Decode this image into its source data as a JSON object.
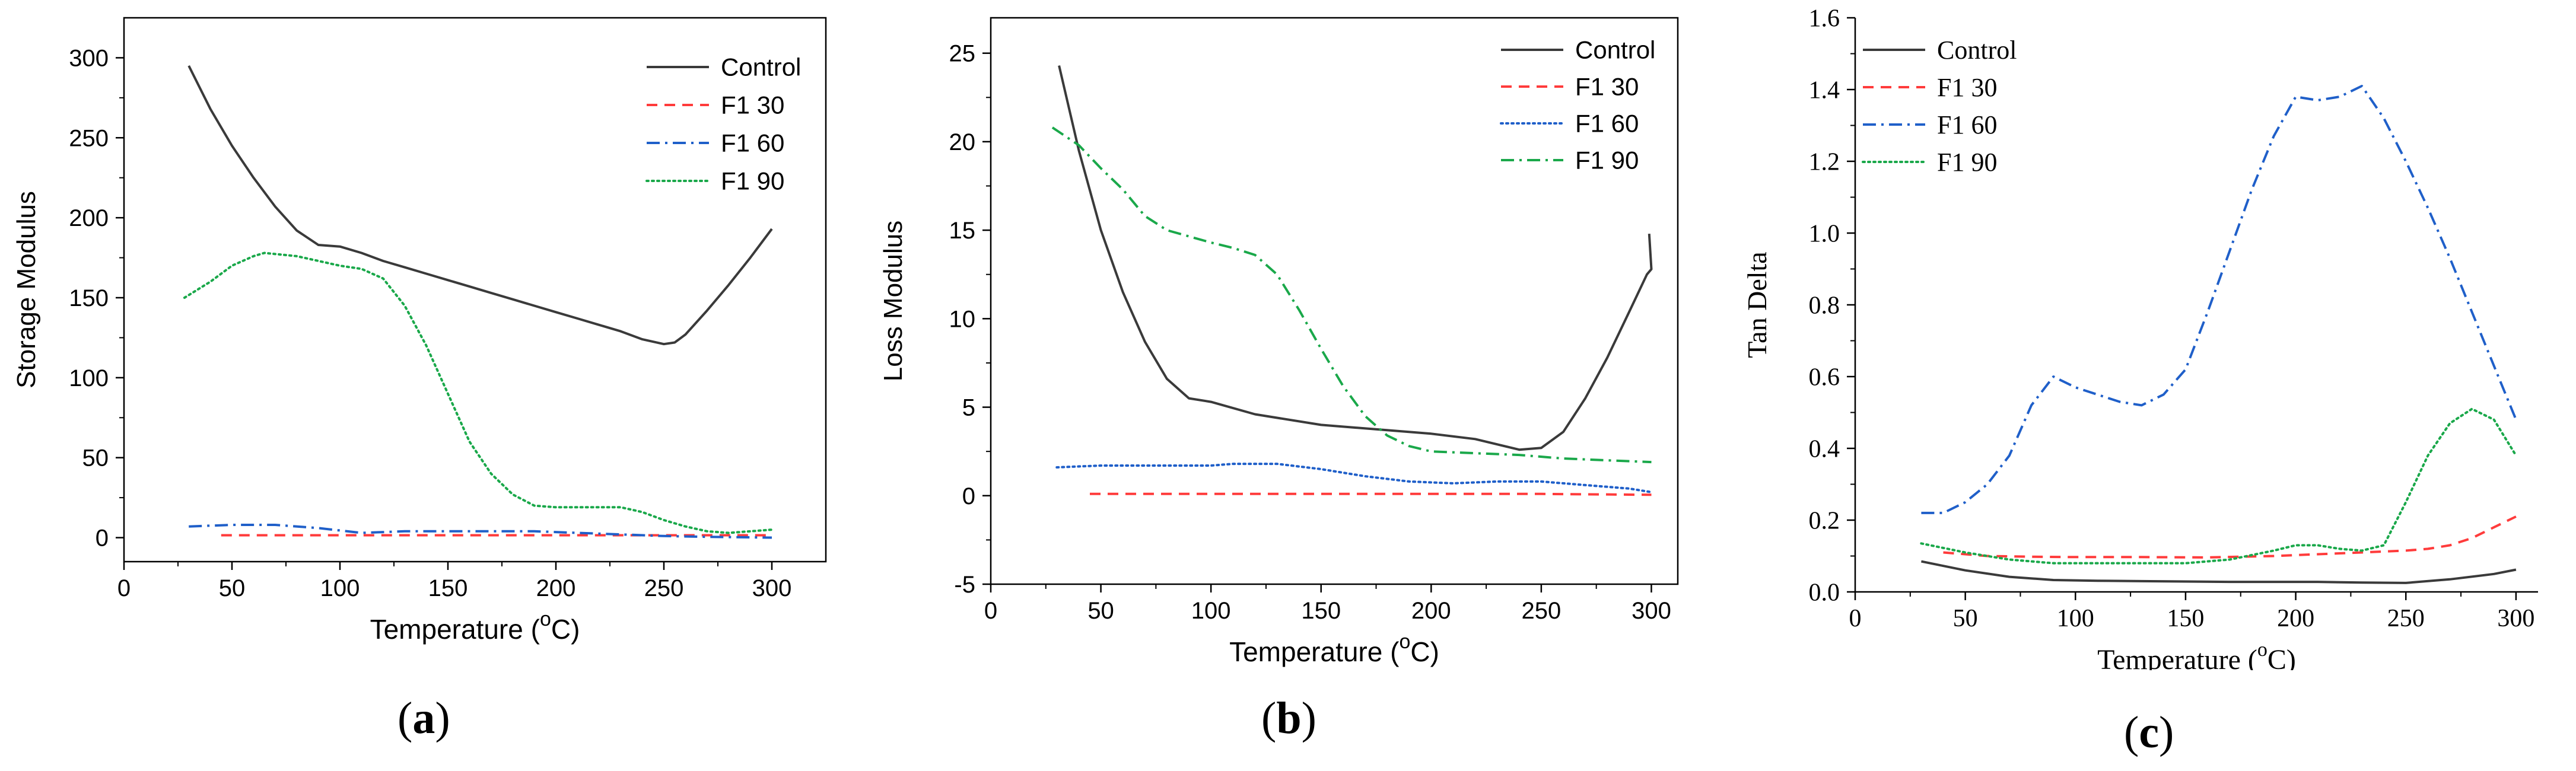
{
  "panels": [
    {
      "id": "a",
      "caption": "a",
      "chart_data": {
        "type": "line",
        "xlabel": "Temperature (oC)",
        "ylabel": "Storage Modulus",
        "xlim": [
          0,
          325
        ],
        "ylim": [
          -15,
          325
        ],
        "xticks": [
          0,
          50,
          100,
          150,
          200,
          250,
          300
        ],
        "yticks": [
          0,
          50,
          100,
          150,
          200,
          250,
          300
        ],
        "legend_position": "top-right",
        "font": "sans",
        "series": [
          {
            "name": "Control",
            "color": "#3a3a3a",
            "dash": "solid",
            "x": [
              30,
              40,
              50,
              60,
              70,
              80,
              90,
              100,
              110,
              120,
              130,
              140,
              150,
              160,
              170,
              180,
              190,
              200,
              210,
              220,
              230,
              240,
              250,
              255,
              260,
              270,
              280,
              290,
              300
            ],
            "y": [
              295,
              268,
              245,
              225,
              207,
              192,
              183,
              182,
              178,
              173,
              169,
              165,
              161,
              157,
              153,
              149,
              145,
              141,
              137,
              133,
              129,
              124,
              121,
              122,
              127,
              142,
              158,
              175,
              193
            ]
          },
          {
            "name": "F1 30",
            "color": "#ff3b3b",
            "dash": "dashed",
            "x": [
              45,
              100,
              150,
              200,
              250,
              300
            ],
            "y": [
              1.5,
              1.5,
              1.5,
              1.5,
              1.5,
              1.5
            ]
          },
          {
            "name": "F1 60",
            "color": "#1f5fc9",
            "dash": "dashdot",
            "x": [
              30,
              50,
              70,
              90,
              110,
              130,
              150,
              170,
              190,
              210,
              230,
              250,
              270,
              300
            ],
            "y": [
              7,
              8,
              8,
              6,
              3,
              4,
              4,
              4,
              4,
              3,
              2,
              1,
              0.5,
              0
            ]
          },
          {
            "name": "F1 90",
            "color": "#1aa84a",
            "dash": "dotted",
            "x": [
              28,
              40,
              50,
              60,
              65,
              80,
              100,
              110,
              120,
              130,
              140,
              150,
              160,
              170,
              180,
              190,
              200,
              220,
              230,
              240,
              250,
              260,
              270,
              280,
              290,
              300
            ],
            "y": [
              150,
              160,
              170,
              176,
              178,
              176,
              170,
              168,
              162,
              145,
              120,
              90,
              60,
              40,
              27,
              20,
              19,
              19,
              19,
              16,
              11,
              7,
              4,
              3,
              4,
              5
            ]
          }
        ]
      }
    },
    {
      "id": "b",
      "caption": "b",
      "chart_data": {
        "type": "line",
        "xlabel": "Temperature (oC)",
        "ylabel": "Loss Modulus",
        "xlim": [
          0,
          312
        ],
        "ylim": [
          -5,
          27
        ],
        "xticks": [
          0,
          50,
          100,
          150,
          200,
          250,
          300
        ],
        "yticks": [
          -5,
          0,
          5,
          10,
          15,
          20,
          25
        ],
        "legend_position": "top-right",
        "font": "sans",
        "series": [
          {
            "name": "Control",
            "color": "#3a3a3a",
            "dash": "solid",
            "x": [
              31,
              40,
              50,
              60,
              70,
              80,
              90,
              100,
              120,
              150,
              200,
              220,
              240,
              250,
              260,
              270,
              280,
              290,
              298,
              300,
              299
            ],
            "y": [
              24.3,
              19.5,
              15.0,
              11.5,
              8.7,
              6.6,
              5.5,
              5.3,
              4.6,
              4.0,
              3.5,
              3.2,
              2.6,
              2.7,
              3.6,
              5.5,
              7.8,
              10.4,
              12.5,
              12.8,
              14.8
            ]
          },
          {
            "name": "F1 30",
            "color": "#ff3b3b",
            "dash": "dashed",
            "x": [
              45,
              100,
              150,
              200,
              250,
              300
            ],
            "y": [
              0.1,
              0.1,
              0.1,
              0.1,
              0.1,
              0.05
            ]
          },
          {
            "name": "F1 60",
            "color": "#1f5fc9",
            "dash": "dotted",
            "x": [
              30,
              50,
              70,
              90,
              100,
              110,
              120,
              130,
              150,
              170,
              190,
              210,
              230,
              250,
              270,
              290,
              300
            ],
            "y": [
              1.6,
              1.7,
              1.7,
              1.7,
              1.7,
              1.8,
              1.8,
              1.8,
              1.5,
              1.1,
              0.8,
              0.7,
              0.8,
              0.8,
              0.6,
              0.4,
              0.2
            ]
          },
          {
            "name": "F1 90",
            "color": "#1aa84a",
            "dash": "dashdot",
            "x": [
              28,
              40,
              50,
              60,
              70,
              80,
              100,
              110,
              120,
              130,
              140,
              150,
              160,
              170,
              180,
              190,
              200,
              220,
              240,
              260,
              280,
              300
            ],
            "y": [
              20.8,
              19.8,
              18.5,
              17.3,
              15.8,
              15.0,
              14.3,
              14.0,
              13.6,
              12.5,
              10.5,
              8.3,
              6.2,
              4.5,
              3.4,
              2.8,
              2.5,
              2.4,
              2.3,
              2.1,
              2.0,
              1.9
            ]
          }
        ]
      }
    },
    {
      "id": "c",
      "caption": "c",
      "chart_data": {
        "type": "line",
        "xlabel": "Temperature (oC)",
        "ylabel": "Tan Delta",
        "xlim": [
          0,
          310
        ],
        "ylim": [
          0,
          1.6
        ],
        "xticks": [
          0,
          50,
          100,
          150,
          200,
          250,
          300
        ],
        "yticks": [
          0.0,
          0.2,
          0.4,
          0.6,
          0.8,
          1.0,
          1.2,
          1.4,
          1.6
        ],
        "ytick_decimals": 1,
        "legend_position": "top-left",
        "font": "serif",
        "series": [
          {
            "name": "Control",
            "color": "#3a3a3a",
            "dash": "solid",
            "x": [
              30,
              50,
              70,
              90,
              110,
              130,
              150,
              170,
              190,
              210,
              230,
              250,
              270,
              290,
              300
            ],
            "y": [
              0.085,
              0.06,
              0.042,
              0.033,
              0.031,
              0.03,
              0.029,
              0.028,
              0.028,
              0.028,
              0.026,
              0.025,
              0.035,
              0.05,
              0.062
            ]
          },
          {
            "name": "F1 30",
            "color": "#ff3b3b",
            "dash": "dashed",
            "x": [
              40,
              60,
              80,
              100,
              130,
              160,
              190,
              210,
              230,
              250,
              260,
              270,
              280,
              290,
              300
            ],
            "y": [
              0.11,
              0.1,
              0.098,
              0.097,
              0.097,
              0.096,
              0.1,
              0.105,
              0.11,
              0.115,
              0.12,
              0.13,
              0.15,
              0.18,
              0.21
            ]
          },
          {
            "name": "F1 60",
            "color": "#1f5fc9",
            "dash": "dashdot",
            "x": [
              30,
              40,
              50,
              60,
              70,
              80,
              90,
              100,
              110,
              120,
              130,
              140,
              150,
              160,
              170,
              180,
              190,
              200,
              210,
              220,
              230,
              240,
              250,
              260,
              270,
              280,
              290,
              300
            ],
            "y": [
              0.22,
              0.22,
              0.25,
              0.3,
              0.38,
              0.52,
              0.6,
              0.57,
              0.55,
              0.53,
              0.52,
              0.55,
              0.62,
              0.78,
              0.95,
              1.12,
              1.27,
              1.38,
              1.37,
              1.38,
              1.41,
              1.32,
              1.2,
              1.07,
              0.93,
              0.78,
              0.63,
              0.48
            ]
          },
          {
            "name": "F1 90",
            "color": "#1aa84a",
            "dash": "dotted",
            "x": [
              30,
              50,
              70,
              90,
              110,
              130,
              150,
              170,
              190,
              200,
              210,
              220,
              230,
              240,
              250,
              260,
              270,
              280,
              290,
              300
            ],
            "y": [
              0.135,
              0.11,
              0.09,
              0.08,
              0.08,
              0.08,
              0.08,
              0.09,
              0.115,
              0.13,
              0.13,
              0.12,
              0.115,
              0.13,
              0.25,
              0.38,
              0.47,
              0.51,
              0.48,
              0.38
            ]
          }
        ]
      }
    }
  ]
}
